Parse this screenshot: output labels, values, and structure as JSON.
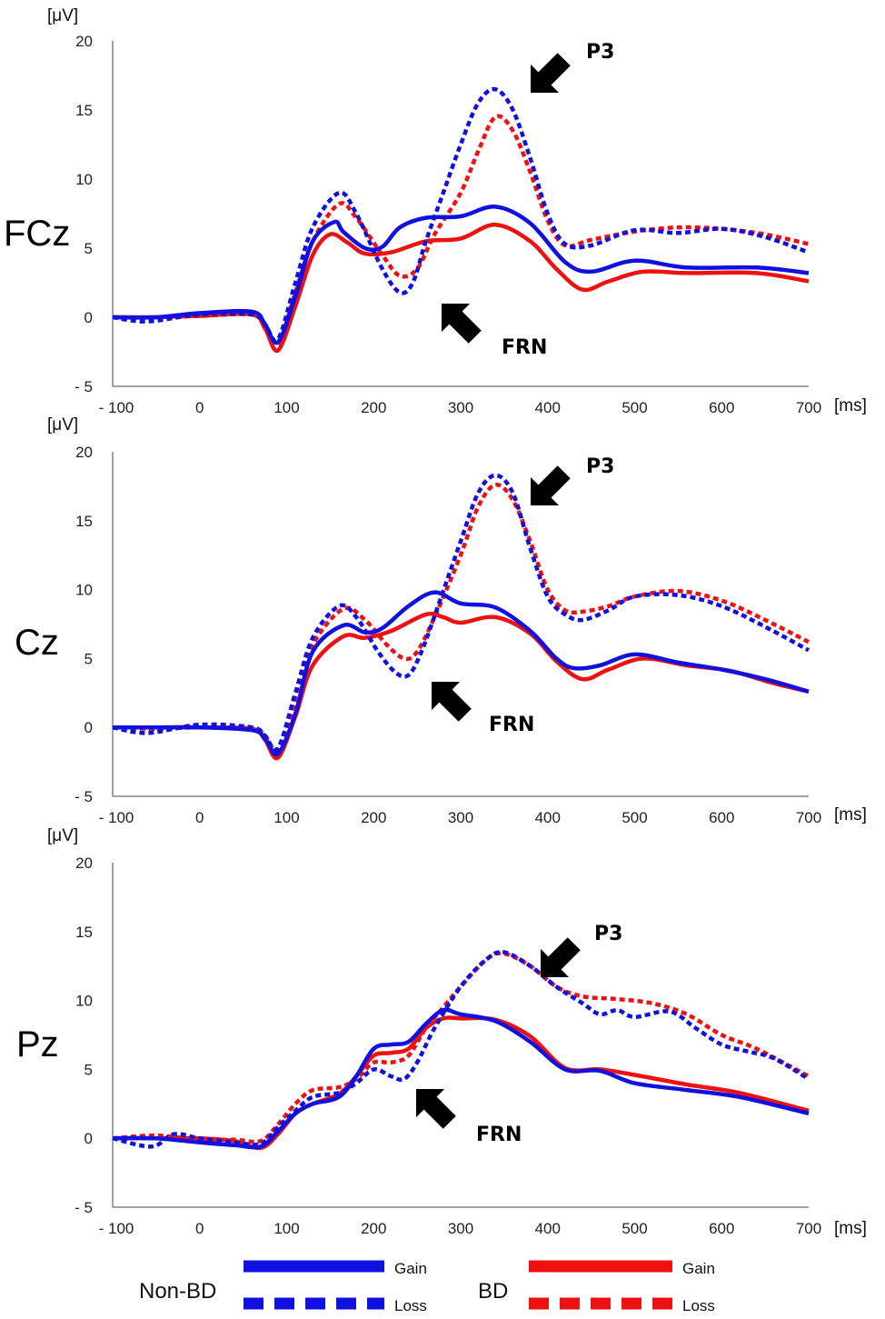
{
  "chart_data": [
    {
      "type": "line",
      "channel": "FCz",
      "ylabel": "[μV]",
      "xlabel": "[ms]",
      "xlim": [
        -100,
        700
      ],
      "ylim": [
        -5,
        20
      ],
      "xticks": [
        "- 100",
        "0",
        "100",
        "200",
        "300",
        "400",
        "500",
        "600",
        "700"
      ],
      "yticks": [
        "20",
        "15",
        "10",
        "5",
        "0",
        "- 5"
      ],
      "series": [
        {
          "name": "Non-BD Gain",
          "color": "#1010e0",
          "style": "solid",
          "x": [
            -100,
            -50,
            0,
            60,
            75,
            90,
            110,
            130,
            155,
            165,
            190,
            210,
            230,
            260,
            300,
            340,
            380,
            420,
            450,
            500,
            560,
            640,
            700
          ],
          "y": [
            0,
            0,
            0.3,
            0.4,
            -0.5,
            -1.8,
            1.5,
            5.5,
            6.9,
            6.2,
            5.0,
            5.1,
            6.5,
            7.2,
            7.3,
            8.0,
            6.8,
            4.0,
            3.3,
            4.1,
            3.6,
            3.6,
            3.2
          ]
        },
        {
          "name": "Non-BD Loss",
          "color": "#1010e0",
          "style": "dashed",
          "x": [
            -100,
            -60,
            0,
            60,
            75,
            90,
            110,
            130,
            160,
            180,
            210,
            230,
            245,
            260,
            280,
            300,
            320,
            340,
            360,
            380,
            400,
            420,
            450,
            500,
            550,
            600,
            650,
            700
          ],
          "y": [
            0,
            -0.3,
            0.2,
            0.2,
            -0.5,
            -1.6,
            2.5,
            6.5,
            9.0,
            7.5,
            3.5,
            1.8,
            2.5,
            5.5,
            9.0,
            12.5,
            15.5,
            16.5,
            15.0,
            11.5,
            7.5,
            5.3,
            5.2,
            6.3,
            6.1,
            6.4,
            5.8,
            4.7
          ]
        },
        {
          "name": "BD Gain",
          "color": "#ee1111",
          "style": "solid",
          "x": [
            -100,
            -50,
            0,
            60,
            75,
            90,
            110,
            130,
            150,
            170,
            190,
            220,
            260,
            300,
            340,
            380,
            410,
            440,
            470,
            510,
            560,
            640,
            700
          ],
          "y": [
            0,
            0,
            0.1,
            0.2,
            -0.8,
            -2.4,
            0.8,
            4.5,
            6.0,
            5.4,
            4.6,
            4.7,
            5.5,
            5.7,
            6.7,
            5.5,
            3.5,
            2.0,
            2.6,
            3.3,
            3.2,
            3.2,
            2.6
          ]
        },
        {
          "name": "BD Loss",
          "color": "#ee1111",
          "style": "dashed",
          "x": [
            -100,
            -50,
            0,
            60,
            75,
            90,
            110,
            130,
            160,
            180,
            210,
            230,
            250,
            270,
            300,
            320,
            340,
            360,
            380,
            400,
            420,
            450,
            500,
            550,
            600,
            650,
            700
          ],
          "y": [
            0,
            0,
            0.1,
            0.2,
            -0.5,
            -1.9,
            1.8,
            5.5,
            8.2,
            7.2,
            4.5,
            3.0,
            3.5,
            6.0,
            9.0,
            12.0,
            14.5,
            13.5,
            10.5,
            7.0,
            5.2,
            5.6,
            6.2,
            6.5,
            6.4,
            6.0,
            5.3
          ]
        }
      ],
      "annotations": [
        {
          "label": "P3",
          "x_ms": 340,
          "y_uv": 16.5
        },
        {
          "label": "FRN",
          "x_ms": 245,
          "y_uv": 1.8
        }
      ]
    },
    {
      "type": "line",
      "channel": "Cz",
      "ylabel": "[μV]",
      "xlabel": "[ms]",
      "xlim": [
        -100,
        700
      ],
      "ylim": [
        -5,
        20
      ],
      "xticks": [
        "- 100",
        "0",
        "100",
        "200",
        "300",
        "400",
        "500",
        "600",
        "700"
      ],
      "yticks": [
        "20",
        "15",
        "10",
        "5",
        "0",
        "- 5"
      ],
      "series": [
        {
          "name": "Non-BD Gain",
          "color": "#1010e0",
          "style": "solid",
          "x": [
            -100,
            -50,
            0,
            60,
            75,
            90,
            110,
            130,
            165,
            190,
            210,
            240,
            270,
            300,
            340,
            380,
            410,
            430,
            460,
            500,
            550,
            600,
            650,
            700
          ],
          "y": [
            0,
            0,
            0,
            -0.2,
            -0.8,
            -1.9,
            1.0,
            5.5,
            7.4,
            6.9,
            7.2,
            8.8,
            9.8,
            9.0,
            8.7,
            7.0,
            5.0,
            4.3,
            4.5,
            5.3,
            4.7,
            4.2,
            3.5,
            2.6
          ]
        },
        {
          "name": "Non-BD Loss",
          "color": "#1010e0",
          "style": "dashed",
          "x": [
            -100,
            -60,
            0,
            60,
            75,
            90,
            110,
            130,
            160,
            180,
            205,
            225,
            240,
            255,
            275,
            300,
            320,
            340,
            360,
            380,
            400,
            420,
            440,
            470,
            500,
            550,
            600,
            650,
            700
          ],
          "y": [
            0,
            -0.4,
            0.2,
            0,
            -0.6,
            -1.5,
            2.5,
            6.5,
            8.8,
            8.0,
            5.5,
            4.0,
            3.8,
            5.5,
            9.0,
            13.5,
            17.0,
            18.3,
            17.0,
            13.0,
            9.5,
            8.2,
            7.8,
            8.5,
            9.5,
            9.6,
            8.8,
            7.3,
            5.6
          ]
        },
        {
          "name": "BD Gain",
          "color": "#ee1111",
          "style": "solid",
          "x": [
            -100,
            -50,
            0,
            60,
            75,
            90,
            110,
            130,
            165,
            190,
            220,
            260,
            280,
            300,
            340,
            380,
            410,
            440,
            470,
            510,
            560,
            610,
            660,
            700
          ],
          "y": [
            0,
            0,
            0,
            -0.1,
            -0.9,
            -2.2,
            0.8,
            4.5,
            6.6,
            6.5,
            7.0,
            8.2,
            8.0,
            7.6,
            8.0,
            6.8,
            4.8,
            3.5,
            4.2,
            5.0,
            4.5,
            4.1,
            3.2,
            2.6
          ]
        },
        {
          "name": "BD Loss",
          "color": "#ee1111",
          "style": "dashed",
          "x": [
            -100,
            -50,
            0,
            60,
            75,
            90,
            110,
            130,
            165,
            190,
            215,
            235,
            250,
            270,
            300,
            320,
            340,
            360,
            380,
            400,
            420,
            440,
            470,
            500,
            550,
            600,
            650,
            700
          ],
          "y": [
            0,
            -0.1,
            0,
            -0.1,
            -0.6,
            -1.6,
            2.0,
            6.0,
            8.6,
            7.8,
            6.0,
            5.0,
            5.5,
            8.0,
            12.5,
            16.0,
            17.6,
            16.5,
            13.5,
            10.0,
            8.5,
            8.4,
            8.8,
            9.5,
            9.9,
            9.2,
            7.8,
            6.2
          ]
        }
      ],
      "annotations": [
        {
          "label": "P3",
          "x_ms": 340,
          "y_uv": 18.3
        },
        {
          "label": "FRN",
          "x_ms": 240,
          "y_uv": 3.8
        }
      ]
    },
    {
      "type": "line",
      "channel": "Pz",
      "ylabel": "[μV]",
      "xlabel": "[ms]",
      "xlim": [
        -100,
        700
      ],
      "ylim": [
        -5,
        20
      ],
      "xticks": [
        "- 100",
        "0",
        "100",
        "200",
        "300",
        "400",
        "500",
        "600",
        "700"
      ],
      "yticks": [
        "20",
        "15",
        "10",
        "5",
        "0",
        "- 5"
      ],
      "series": [
        {
          "name": "Non-BD Gain",
          "color": "#1010e0",
          "style": "solid",
          "x": [
            -100,
            -50,
            0,
            40,
            70,
            90,
            110,
            130,
            160,
            180,
            200,
            220,
            240,
            260,
            280,
            300,
            340,
            380,
            420,
            460,
            500,
            560,
            620,
            700
          ],
          "y": [
            0,
            0,
            -0.3,
            -0.5,
            -0.6,
            0.5,
            1.8,
            2.5,
            3.0,
            4.5,
            6.5,
            6.8,
            7.0,
            8.3,
            9.3,
            9.0,
            8.5,
            7.0,
            5.0,
            4.9,
            4.0,
            3.5,
            3.0,
            1.8
          ]
        },
        {
          "name": "Non-BD Loss",
          "color": "#1010e0",
          "style": "dashed",
          "x": [
            -100,
            -55,
            -30,
            0,
            40,
            70,
            90,
            110,
            130,
            160,
            180,
            200,
            220,
            235,
            250,
            270,
            300,
            330,
            350,
            380,
            410,
            440,
            460,
            480,
            500,
            540,
            570,
            600,
            630,
            660,
            700
          ],
          "y": [
            0,
            -0.6,
            0.3,
            0,
            -0.3,
            -0.4,
            0.8,
            2.0,
            3.0,
            3.3,
            4.0,
            5.0,
            4.5,
            4.3,
            5.5,
            8.0,
            11.0,
            13.0,
            13.5,
            12.5,
            11.0,
            9.8,
            9.0,
            9.3,
            8.8,
            9.2,
            8.0,
            6.8,
            6.3,
            5.8,
            4.3
          ]
        },
        {
          "name": "BD Gain",
          "color": "#ee1111",
          "style": "solid",
          "x": [
            -100,
            -50,
            0,
            40,
            70,
            90,
            110,
            130,
            160,
            180,
            200,
            220,
            240,
            260,
            280,
            300,
            340,
            380,
            420,
            460,
            500,
            560,
            620,
            700
          ],
          "y": [
            0,
            0,
            0,
            -0.2,
            -0.7,
            0.3,
            1.8,
            2.5,
            3.2,
            4.5,
            6.0,
            6.2,
            6.5,
            8.0,
            8.7,
            8.7,
            8.6,
            7.4,
            5.1,
            5.0,
            4.6,
            3.9,
            3.3,
            2.0
          ]
        },
        {
          "name": "BD Loss",
          "color": "#ee1111",
          "style": "dashed",
          "x": [
            -100,
            -50,
            0,
            40,
            70,
            90,
            110,
            130,
            160,
            180,
            200,
            220,
            240,
            260,
            280,
            300,
            330,
            350,
            380,
            410,
            440,
            480,
            520,
            560,
            600,
            640,
            700
          ],
          "y": [
            0,
            0.2,
            -0.1,
            -0.1,
            -0.2,
            1.0,
            2.5,
            3.5,
            3.7,
            4.3,
            5.5,
            5.5,
            6.0,
            8.0,
            9.5,
            11.0,
            13.0,
            13.4,
            12.5,
            11.0,
            10.3,
            10.1,
            9.8,
            9.0,
            7.5,
            6.5,
            4.5
          ]
        }
      ],
      "annotations": [
        {
          "label": "P3",
          "x_ms": 350,
          "y_uv": 13.4
        },
        {
          "label": "FRN",
          "x_ms": 230,
          "y_uv": 4.3
        }
      ]
    }
  ],
  "legend": {
    "groups": [
      {
        "name": "Non-BD",
        "color": "#1010e0",
        "items": [
          "Gain",
          "Loss"
        ]
      },
      {
        "name": "BD",
        "color": "#ee1111",
        "items": [
          "Gain",
          "Loss"
        ]
      }
    ]
  }
}
